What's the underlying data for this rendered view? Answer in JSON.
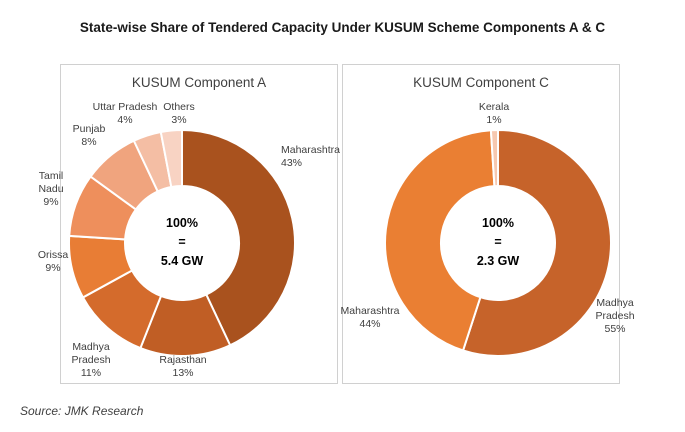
{
  "title": "State-wise Share of Tendered Capacity Under KUSUM Scheme Components A & C",
  "source": "Source: JMK Research",
  "chart_data": [
    {
      "type": "pie",
      "title": "KUSUM Component A",
      "center_label": [
        "100%",
        "=",
        "5.4 GW"
      ],
      "unit": "%",
      "slices": [
        {
          "name": "Maharashtra",
          "value": 43,
          "color": "#A9521E"
        },
        {
          "name": "Rajasthan",
          "value": 13,
          "color": "#C05E25"
        },
        {
          "name": "Madhya Pradesh",
          "value": 11,
          "color": "#D46B2C"
        },
        {
          "name": "Orissa",
          "value": 9,
          "color": "#E87D35"
        },
        {
          "name": "Tamil Nadu",
          "value": 9,
          "color": "#EE8F5C"
        },
        {
          "name": "Punjab",
          "value": 8,
          "color": "#F0A47E"
        },
        {
          "name": "Uttar Pradesh",
          "value": 4,
          "color": "#F4BEA4"
        },
        {
          "name": "Others",
          "value": 3,
          "color": "#F8D3C3"
        }
      ]
    },
    {
      "type": "pie",
      "title": "KUSUM Component C",
      "center_label": [
        "100%",
        "=",
        "2.3 GW"
      ],
      "unit": "%",
      "slices": [
        {
          "name": "Madhya Pradesh",
          "value": 55,
          "color": "#C6632A"
        },
        {
          "name": "Maharashtra",
          "value": 44,
          "color": "#EA7F33"
        },
        {
          "name": "Kerala",
          "value": 1,
          "color": "#F6C8B0"
        }
      ]
    }
  ]
}
